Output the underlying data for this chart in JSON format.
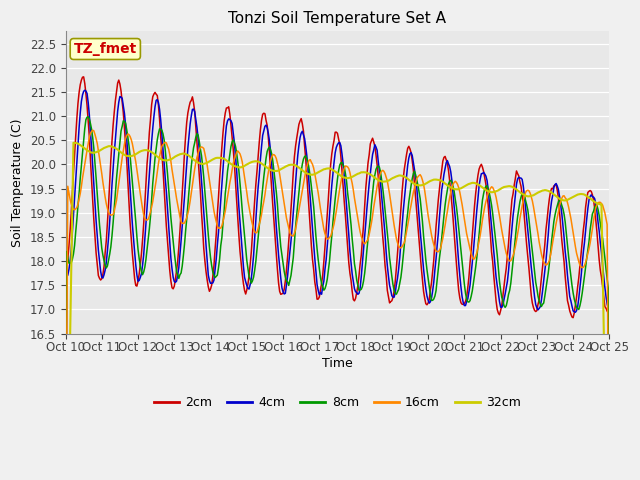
{
  "title": "Tonzi Soil Temperature Set A",
  "xlabel": "Time",
  "ylabel": "Soil Temperature (C)",
  "ylim": [
    16.5,
    22.75
  ],
  "xlim": [
    0,
    240
  ],
  "xtick_labels": [
    "Oct 10",
    "Oct 11",
    "Oct 12",
    "Oct 13",
    "Oct 14",
    "Oct 15",
    "Oct 16",
    "Oct 17",
    "Oct 18",
    "Oct 19",
    "Oct 20",
    "Oct 21",
    "Oct 22",
    "Oct 23",
    "Oct 24",
    "Oct 25"
  ],
  "xtick_positions": [
    0,
    16,
    32,
    48,
    64,
    80,
    96,
    112,
    128,
    144,
    160,
    176,
    192,
    208,
    224,
    240
  ],
  "colors": {
    "2cm": "#cc0000",
    "4cm": "#0000cc",
    "8cm": "#009900",
    "16cm": "#ff8800",
    "32cm": "#cccc00"
  },
  "annotation_text": "TZ_fmet",
  "annotation_color": "#cc0000",
  "annotation_bg": "#ffffcc",
  "annotation_border": "#999900",
  "plot_bg": "#e8e8e8",
  "fig_bg": "#f0f0f0",
  "grid_color": "#ffffff",
  "title_fontsize": 11,
  "label_fontsize": 9,
  "tick_fontsize": 8.5,
  "legend_fontsize": 9
}
